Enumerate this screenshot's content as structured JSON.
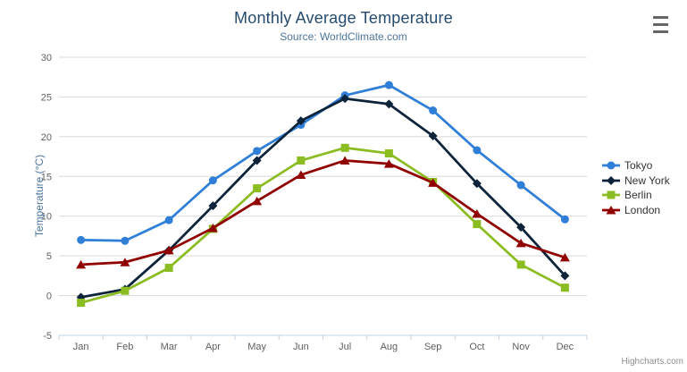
{
  "header": {
    "title": "Monthly Average Temperature",
    "subtitle": "Source: WorldClimate.com"
  },
  "credits": {
    "text": "Highcharts.com"
  },
  "context_menu": {
    "icon": "hamburger-icon"
  },
  "colors": {
    "title": "#274b6d",
    "subtitle": "#4d759e",
    "axis_title": "#4d759e",
    "axis_labels": "#606060",
    "gridline": "#d8d8d8",
    "axis_line": "#c0d0e0",
    "legend_text": "#333333",
    "credits_text": "#909090",
    "context_button": "#666666",
    "background": "#ffffff"
  },
  "chart_data": {
    "type": "line",
    "title": "Monthly Average Temperature",
    "subtitle": "Source: WorldClimate.com",
    "categories": [
      "Jan",
      "Feb",
      "Mar",
      "Apr",
      "May",
      "Jun",
      "Jul",
      "Aug",
      "Sep",
      "Oct",
      "Nov",
      "Dec"
    ],
    "series": [
      {
        "name": "Tokyo",
        "color": "#2f7ed8",
        "marker": "circle",
        "values": [
          7.0,
          6.9,
          9.5,
          14.5,
          18.2,
          21.5,
          25.2,
          26.5,
          23.3,
          18.3,
          13.9,
          9.6
        ]
      },
      {
        "name": "New York",
        "color": "#0d233a",
        "marker": "diamond",
        "values": [
          -0.2,
          0.8,
          5.7,
          11.3,
          17.0,
          22.0,
          24.8,
          24.1,
          20.1,
          14.1,
          8.6,
          2.5
        ]
      },
      {
        "name": "Berlin",
        "color": "#8bbc21",
        "marker": "square",
        "values": [
          -0.9,
          0.6,
          3.5,
          8.4,
          13.5,
          17.0,
          18.6,
          17.9,
          14.3,
          9.0,
          3.9,
          1.0
        ]
      },
      {
        "name": "London",
        "color": "#910000",
        "marker": "triangle",
        "values": [
          3.9,
          4.2,
          5.7,
          8.5,
          11.9,
          15.2,
          17.0,
          16.6,
          14.2,
          10.3,
          6.6,
          4.8
        ]
      }
    ],
    "xlabel": "",
    "ylabel": "Temperature (°C)",
    "ylim": [
      -5,
      30
    ],
    "yticks": [
      -5,
      0,
      5,
      10,
      15,
      20,
      25,
      30
    ],
    "grid": true,
    "legend_position": "right"
  }
}
